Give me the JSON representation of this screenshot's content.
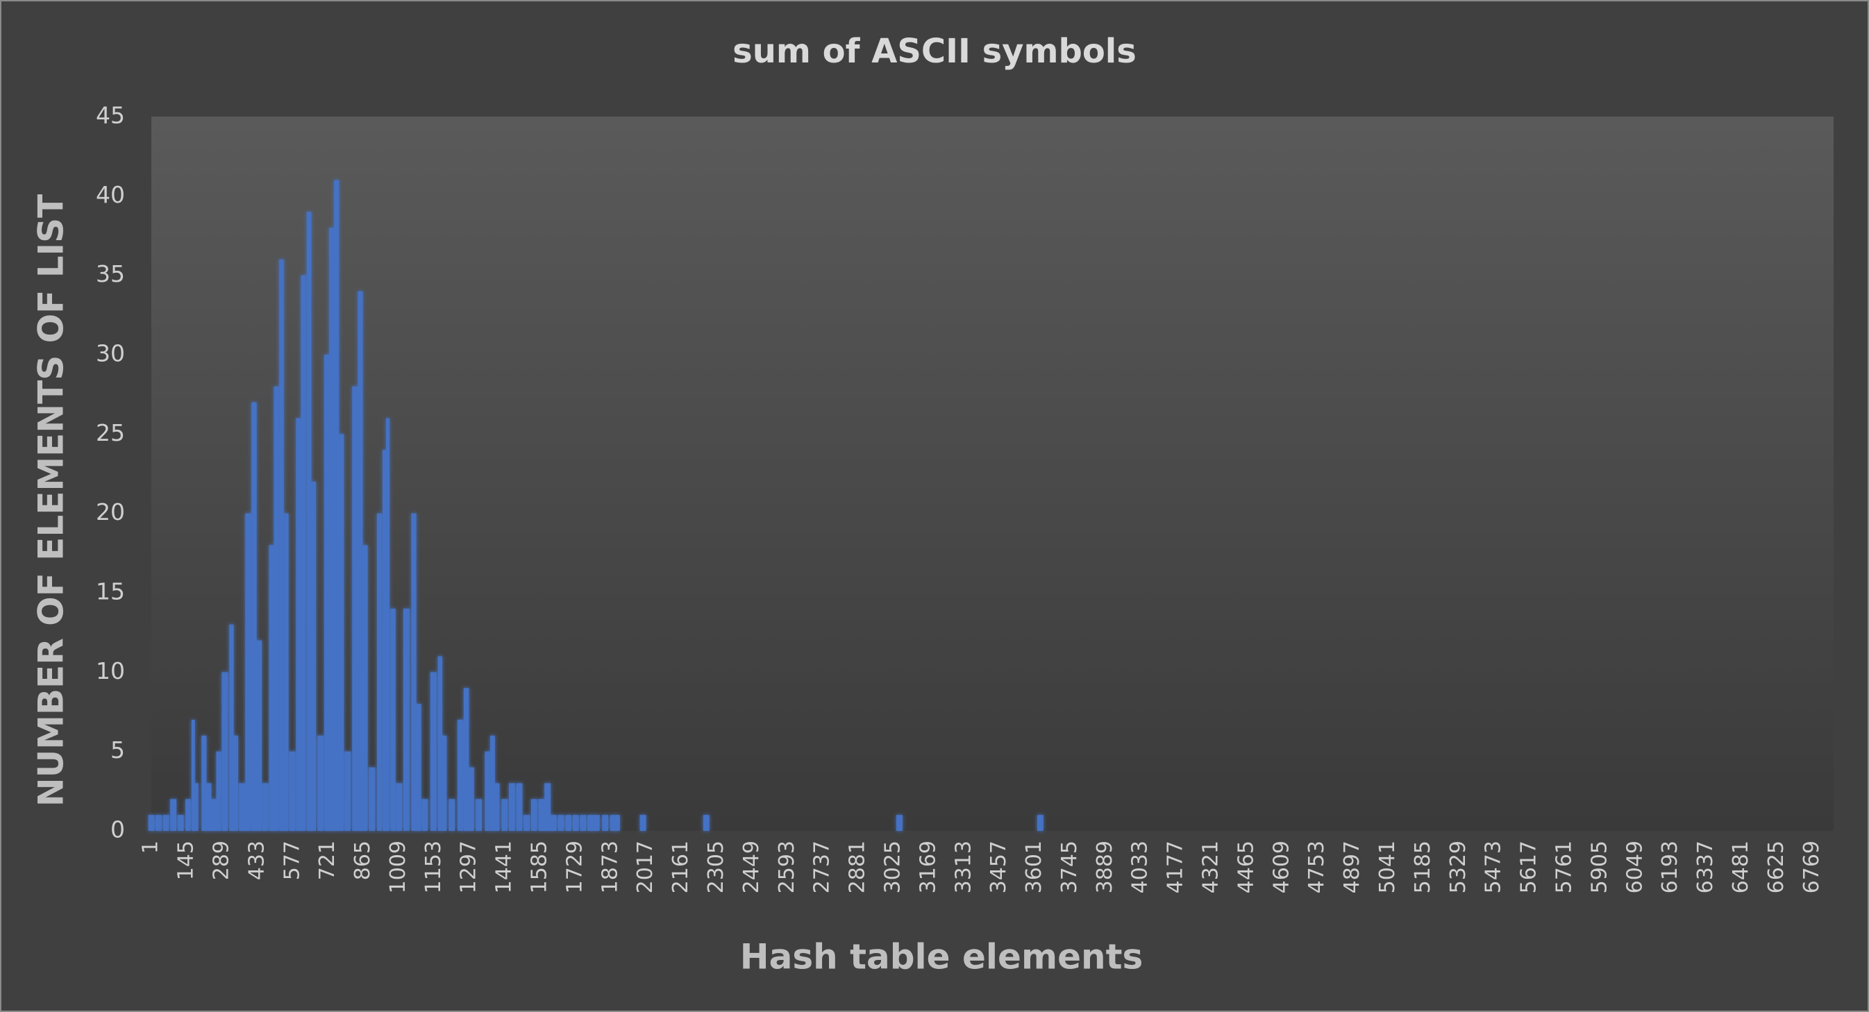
{
  "chart_data": {
    "type": "bar",
    "title": "sum of ASCII symbols",
    "x_label": "Hash table elements",
    "y_label": "NUMBER OF ELEMENTS OF LIST",
    "color": "#4472c4",
    "x": [
      1,
      30,
      60,
      90,
      120,
      150,
      171,
      185,
      215,
      235,
      255,
      275,
      300,
      327,
      345,
      370,
      395,
      419,
      440,
      465,
      490,
      510,
      531,
      550,
      575,
      600,
      620,
      643,
      662,
      690,
      715,
      735,
      755,
      775,
      800,
      830,
      852,
      872,
      900,
      930,
      950,
      964,
      985,
      1010,
      1040,
      1070,
      1090,
      1115,
      1150,
      1177,
      1195,
      1225,
      1260,
      1284,
      1305,
      1335,
      1370,
      1391,
      1410,
      1440,
      1470,
      1500,
      1530,
      1560,
      1590,
      1615,
      1640,
      1670,
      1700,
      1730,
      1760,
      1790,
      1815,
      1850,
      1880,
      1900,
      2004,
      2262,
      3049,
      3623
    ],
    "values": [
      1,
      1,
      1,
      2,
      1,
      2,
      7,
      3,
      6,
      3,
      2,
      5,
      10,
      13,
      6,
      3,
      20,
      27,
      12,
      3,
      18,
      28,
      36,
      20,
      5,
      26,
      35,
      39,
      22,
      6,
      30,
      38,
      41,
      25,
      5,
      28,
      34,
      18,
      4,
      20,
      24,
      26,
      14,
      3,
      14,
      20,
      8,
      2,
      10,
      11,
      6,
      2,
      7,
      9,
      4,
      2,
      5,
      6,
      3,
      2,
      3,
      3,
      1,
      2,
      2,
      3,
      1,
      1,
      1,
      1,
      1,
      1,
      1,
      1,
      1,
      1,
      1,
      1,
      1,
      1
    ],
    "xlim": [
      0.5,
      6856
    ],
    "xticks": [
      1,
      145,
      289,
      433,
      577,
      721,
      865,
      1009,
      1153,
      1297,
      1441,
      1585,
      1729,
      1873,
      2017,
      2161,
      2305,
      2449,
      2593,
      2737,
      2881,
      3025,
      3169,
      3313,
      3457,
      3601,
      3745,
      3889,
      4033,
      4177,
      4321,
      4465,
      4609,
      4753,
      4897,
      5041,
      5185,
      5329,
      5473,
      5617,
      5761,
      5905,
      6049,
      6193,
      6337,
      6481,
      6625,
      6769
    ],
    "ylim": [
      0,
      45
    ],
    "yticks": [
      0,
      5,
      10,
      15,
      20,
      25,
      30,
      35,
      40,
      45
    ],
    "grid": false
  }
}
